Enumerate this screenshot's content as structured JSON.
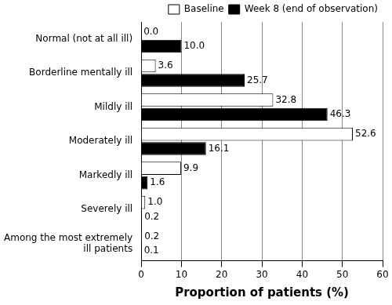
{
  "chart_data": {
    "type": "bar",
    "orientation": "horizontal",
    "categories": [
      "Normal (not at all ill)",
      "Borderline mentally ill",
      "Mildly ill",
      "Moderately ill",
      "Markedly ill",
      "Severely ill",
      "Among the most extremely ill patients"
    ],
    "series": [
      {
        "name": "Baseline",
        "color": "#ffffff",
        "values": [
          0,
          3.6,
          32.8,
          52.6,
          9.9,
          1,
          0.2
        ],
        "value_labels": [
          "0.0",
          "3.6",
          "32.8",
          "52.6",
          "9.9",
          "1.0",
          "0.2"
        ]
      },
      {
        "name": "Week 8 (end of observation)",
        "color": "#000000",
        "values": [
          10,
          25.7,
          46.3,
          16.1,
          1.6,
          0.2,
          0.1
        ],
        "value_labels": [
          "10.0",
          "25.7",
          "46.3",
          "16.1",
          "1.6",
          "0.2",
          "0.1"
        ]
      }
    ],
    "x_label": "Proportion of patients (%)",
    "xlim": [
      0,
      60
    ],
    "xticks": [
      0,
      10,
      20,
      30,
      40,
      50,
      60
    ],
    "grid": true,
    "legend": "top-right",
    "data_labels": true
  }
}
